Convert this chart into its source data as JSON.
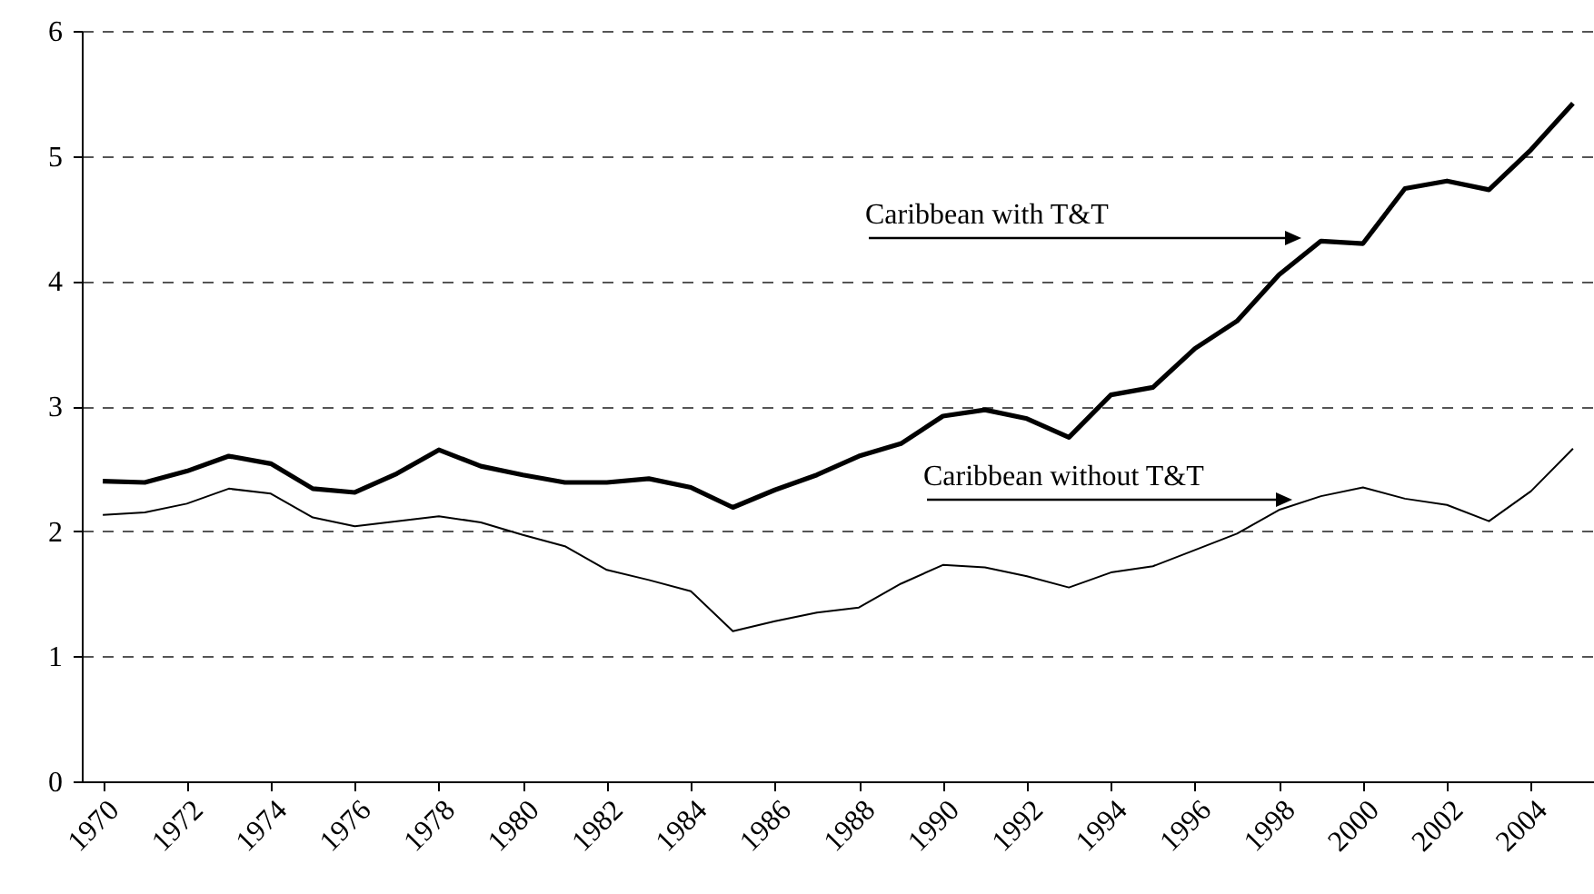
{
  "chart_data": {
    "type": "line",
    "categories": [
      "1970",
      null,
      "1972",
      null,
      "1974",
      null,
      "1976",
      null,
      "1978",
      null,
      "1980",
      null,
      "1982",
      null,
      "1984",
      null,
      "1986",
      null,
      "1988",
      null,
      "1990",
      null,
      "1992",
      null,
      "1994",
      null,
      "1996",
      null,
      "1998",
      null,
      "2000",
      null,
      "2002",
      null,
      "2004",
      null
    ],
    "series": [
      {
        "color": "#000000",
        "values": [
          2.4,
          2.39,
          2.48,
          2.6,
          2.54,
          2.34,
          2.31,
          2.46,
          2.65,
          2.52,
          2.45,
          2.39,
          2.39,
          2.42,
          2.35,
          2.19,
          2.33,
          2.45,
          2.6,
          2.7,
          2.92,
          2.97,
          2.9,
          2.75,
          3.09,
          3.15,
          3.46,
          3.68,
          4.05,
          4.32,
          4.3,
          4.74,
          4.8,
          4.73,
          5.05,
          5.42
        ]
      },
      {
        "color": "#000000",
        "values": [
          2.13,
          2.15,
          2.22,
          2.34,
          2.3,
          2.11,
          2.04,
          2.08,
          2.12,
          2.07,
          1.97,
          1.88,
          1.69,
          1.61,
          1.52,
          1.2,
          1.28,
          1.35,
          1.39,
          1.58,
          1.73,
          1.71,
          1.64,
          1.55,
          1.67,
          1.72,
          1.85,
          1.98,
          2.17,
          2.28,
          2.35,
          2.26,
          2.21,
          2.08,
          2.32,
          2.66
        ]
      }
    ],
    "annotations": [
      "Caribbean with T&T",
      "Caribbean without T&T"
    ],
    "ylim": [
      0,
      6
    ],
    "yticks": [
      0,
      1,
      2,
      3,
      4,
      5,
      6
    ],
    "grid": "y",
    "line_style": "solid"
  }
}
